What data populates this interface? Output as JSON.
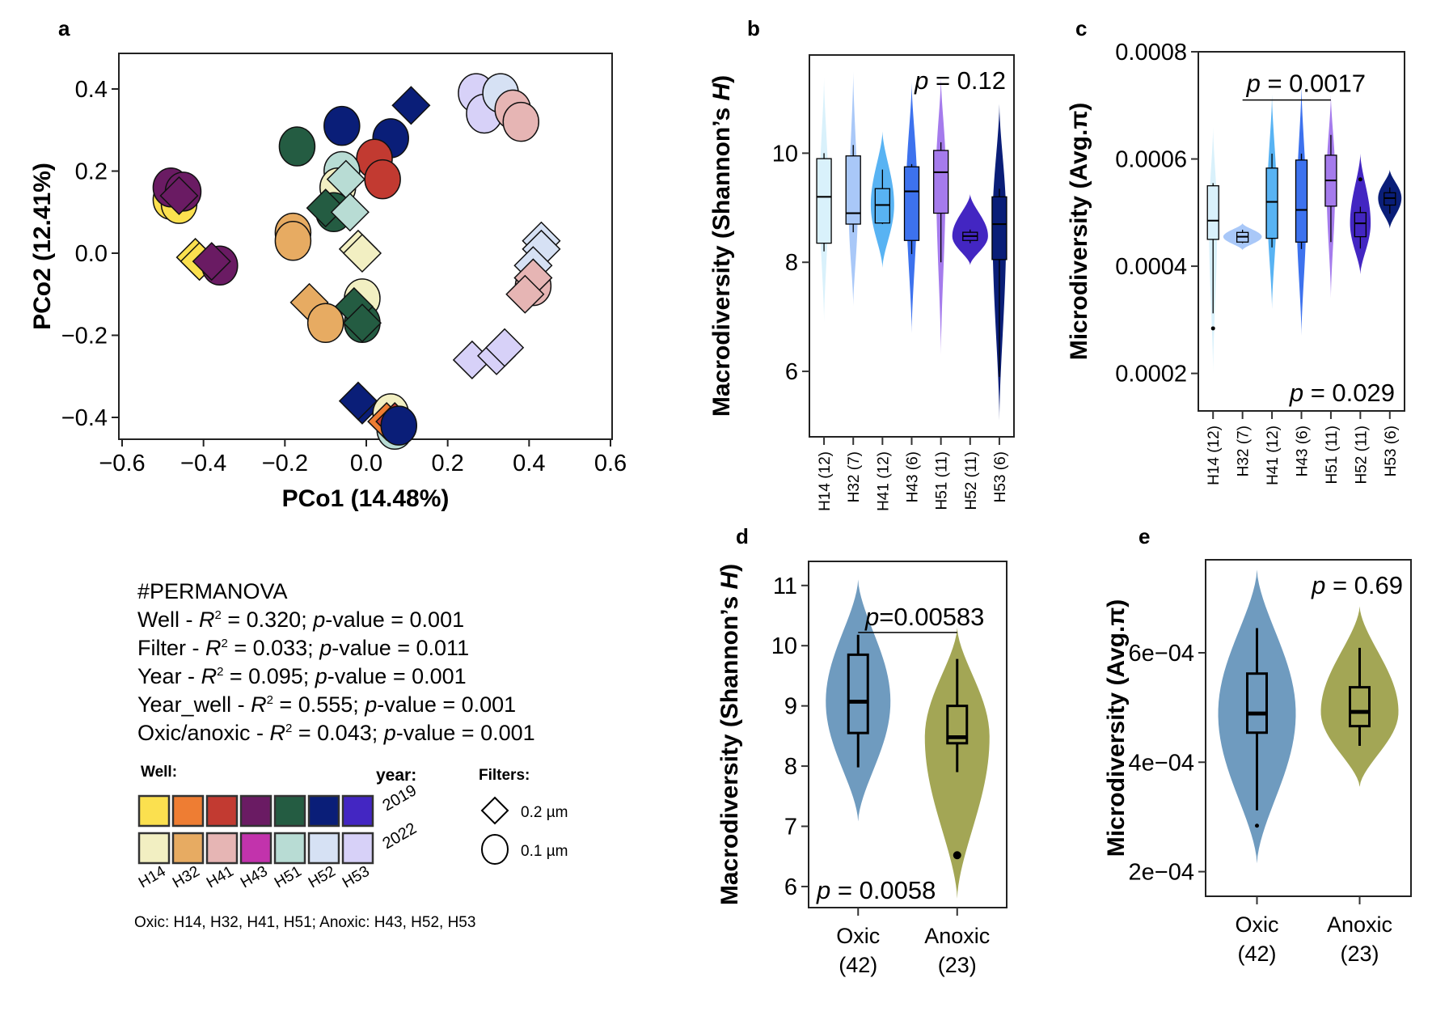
{
  "panels": {
    "a": "a",
    "b": "b",
    "c": "c",
    "d": "d",
    "e": "e"
  },
  "permanova": {
    "title": "#PERMANOVA",
    "rows": [
      {
        "factor": "Well",
        "r2": "0.320",
        "p": "0.001"
      },
      {
        "factor": "Filter",
        "r2": "0.033",
        "p": "0.011"
      },
      {
        "factor": "Year",
        "r2": "0.095",
        "p": "0.001"
      },
      {
        "factor": "Year_well",
        "r2": "0.555",
        "p": "0.001"
      },
      {
        "factor": "Oxic/anoxic",
        "r2": "0.043",
        "p": "0.001"
      }
    ],
    "r_label": "R",
    "sup": "2",
    "p_label": "p",
    "pvalue_suffix": "-value = "
  },
  "legend": {
    "well_title": "Well:",
    "year_title": "year:",
    "filters_title": "Filters:",
    "years": [
      "2019",
      "2022"
    ],
    "wells": [
      "H14",
      "H32",
      "H41",
      "H43",
      "H51",
      "H52",
      "H53"
    ],
    "colors_2019": [
      "#fbe04f",
      "#ee7d33",
      "#c23a31",
      "#6a1b63",
      "#245c42",
      "#0a1e78",
      "#4326c2"
    ],
    "colors_2022": [
      "#f2efc2",
      "#e7ab62",
      "#e6b5b4",
      "#c233ac",
      "#b8dcd4",
      "#d6e1f4",
      "#d7d1f8"
    ],
    "filters": [
      {
        "shape": "diamond",
        "label": "0.2 µm"
      },
      {
        "shape": "circle",
        "label": "0.1 µm"
      }
    ],
    "oxic_note": "Oxic: H14, H32, H41, H51; Anoxic: H43, H52, H53"
  },
  "chart_data": [
    {
      "id": "a",
      "type": "scatter",
      "title": "",
      "xlabel": "PCo1 (14.48%)",
      "ylabel": "PCo2 (12.41%)",
      "xlim": [
        -0.6,
        0.6
      ],
      "ylim": [
        -0.46,
        0.48
      ],
      "xticks": [
        -0.6,
        -0.4,
        -0.2,
        0.0,
        0.2,
        0.4,
        0.6
      ],
      "xtick_labels": [
        "−0.6",
        "−0.4",
        "−0.2",
        "0.0",
        "0.2",
        "0.4",
        "0.6"
      ],
      "yticks": [
        -0.4,
        -0.2,
        0.0,
        0.2,
        0.4
      ],
      "ytick_labels": [
        "−0.4",
        "−0.2",
        "0.0",
        "0.2",
        "0.4"
      ],
      "points": [
        {
          "x": -0.48,
          "y": 0.13,
          "well": "H14",
          "year": "2019",
          "filter": "0.1"
        },
        {
          "x": -0.46,
          "y": 0.12,
          "well": "H14",
          "year": "2019",
          "filter": "0.1"
        },
        {
          "x": -0.48,
          "y": 0.16,
          "well": "H43",
          "year": "2019",
          "filter": "0.1"
        },
        {
          "x": -0.45,
          "y": 0.15,
          "well": "H43",
          "year": "2019",
          "filter": "0.1"
        },
        {
          "x": -0.46,
          "y": 0.14,
          "well": "H43",
          "year": "2019",
          "filter": "0.2"
        },
        {
          "x": -0.42,
          "y": -0.01,
          "well": "H14",
          "year": "2019",
          "filter": "0.2"
        },
        {
          "x": -0.41,
          "y": -0.02,
          "well": "H14",
          "year": "2019",
          "filter": "0.2"
        },
        {
          "x": -0.36,
          "y": -0.03,
          "well": "H43",
          "year": "2019",
          "filter": "0.1"
        },
        {
          "x": -0.38,
          "y": -0.02,
          "well": "H43",
          "year": "2019",
          "filter": "0.2"
        },
        {
          "x": -0.17,
          "y": 0.26,
          "well": "H51",
          "year": "2019",
          "filter": "0.1"
        },
        {
          "x": -0.06,
          "y": 0.31,
          "well": "H52",
          "year": "2019",
          "filter": "0.1"
        },
        {
          "x": 0.06,
          "y": 0.28,
          "well": "H52",
          "year": "2019",
          "filter": "0.1"
        },
        {
          "x": 0.11,
          "y": 0.36,
          "well": "H52",
          "year": "2019",
          "filter": "0.2"
        },
        {
          "x": 0.02,
          "y": 0.23,
          "well": "H41",
          "year": "2019",
          "filter": "0.1"
        },
        {
          "x": 0.04,
          "y": 0.18,
          "well": "H41",
          "year": "2019",
          "filter": "0.1"
        },
        {
          "x": -0.06,
          "y": 0.2,
          "well": "H51",
          "year": "2022",
          "filter": "0.1"
        },
        {
          "x": -0.07,
          "y": 0.16,
          "well": "H14",
          "year": "2022",
          "filter": "0.1"
        },
        {
          "x": -0.05,
          "y": 0.18,
          "well": "H51",
          "year": "2022",
          "filter": "0.2"
        },
        {
          "x": -0.08,
          "y": 0.1,
          "well": "H51",
          "year": "2019",
          "filter": "0.1"
        },
        {
          "x": -0.1,
          "y": 0.11,
          "well": "H51",
          "year": "2019",
          "filter": "0.2"
        },
        {
          "x": -0.04,
          "y": 0.1,
          "well": "H51",
          "year": "2022",
          "filter": "0.2"
        },
        {
          "x": -0.18,
          "y": 0.05,
          "well": "H32",
          "year": "2022",
          "filter": "0.1"
        },
        {
          "x": -0.18,
          "y": 0.03,
          "well": "H32",
          "year": "2022",
          "filter": "0.1"
        },
        {
          "x": -0.02,
          "y": 0.01,
          "well": "H14",
          "year": "2022",
          "filter": "0.2"
        },
        {
          "x": -0.01,
          "y": 0.0,
          "well": "H14",
          "year": "2022",
          "filter": "0.2"
        },
        {
          "x": -0.01,
          "y": -0.11,
          "well": "H14",
          "year": "2022",
          "filter": "0.1"
        },
        {
          "x": -0.14,
          "y": -0.12,
          "well": "H32",
          "year": "2022",
          "filter": "0.2"
        },
        {
          "x": -0.1,
          "y": -0.17,
          "well": "H32",
          "year": "2022",
          "filter": "0.1"
        },
        {
          "x": -0.01,
          "y": -0.17,
          "well": "H51",
          "year": "2019",
          "filter": "0.1"
        },
        {
          "x": -0.03,
          "y": -0.13,
          "well": "H51",
          "year": "2019",
          "filter": "0.2"
        },
        {
          "x": -0.01,
          "y": -0.17,
          "well": "H51",
          "year": "2019",
          "filter": "0.2"
        },
        {
          "x": 0.27,
          "y": 0.39,
          "well": "H53",
          "year": "2022",
          "filter": "0.1"
        },
        {
          "x": 0.29,
          "y": 0.34,
          "well": "H53",
          "year": "2022",
          "filter": "0.1"
        },
        {
          "x": 0.33,
          "y": 0.39,
          "well": "H52",
          "year": "2022",
          "filter": "0.1"
        },
        {
          "x": 0.36,
          "y": 0.35,
          "well": "H41",
          "year": "2022",
          "filter": "0.1"
        },
        {
          "x": 0.38,
          "y": 0.32,
          "well": "H41",
          "year": "2022",
          "filter": "0.1"
        },
        {
          "x": 0.43,
          "y": 0.03,
          "well": "H52",
          "year": "2022",
          "filter": "0.2"
        },
        {
          "x": 0.43,
          "y": 0.01,
          "well": "H52",
          "year": "2022",
          "filter": "0.2"
        },
        {
          "x": 0.41,
          "y": -0.03,
          "well": "H52",
          "year": "2022",
          "filter": "0.2"
        },
        {
          "x": 0.41,
          "y": -0.08,
          "well": "H41",
          "year": "2022",
          "filter": "0.1"
        },
        {
          "x": 0.41,
          "y": -0.06,
          "well": "H41",
          "year": "2022",
          "filter": "0.2"
        },
        {
          "x": 0.39,
          "y": -0.1,
          "well": "H41",
          "year": "2022",
          "filter": "0.2"
        },
        {
          "x": 0.26,
          "y": -0.26,
          "well": "H53",
          "year": "2022",
          "filter": "0.2"
        },
        {
          "x": 0.32,
          "y": -0.25,
          "well": "H53",
          "year": "2022",
          "filter": "0.2"
        },
        {
          "x": 0.34,
          "y": -0.23,
          "well": "H53",
          "year": "2022",
          "filter": "0.2"
        },
        {
          "x": -0.01,
          "y": -0.37,
          "well": "H52",
          "year": "2019",
          "filter": "0.2"
        },
        {
          "x": -0.02,
          "y": -0.36,
          "well": "H52",
          "year": "2019",
          "filter": "0.2"
        },
        {
          "x": 0.06,
          "y": -0.39,
          "well": "H14",
          "year": "2022",
          "filter": "0.1"
        },
        {
          "x": 0.07,
          "y": -0.43,
          "well": "H51",
          "year": "2022",
          "filter": "0.1"
        },
        {
          "x": 0.05,
          "y": -0.41,
          "well": "H32",
          "year": "2019",
          "filter": "0.2"
        },
        {
          "x": 0.07,
          "y": -0.41,
          "well": "H41",
          "year": "2019",
          "filter": "0.2"
        },
        {
          "x": 0.08,
          "y": -0.42,
          "well": "H52",
          "year": "2019",
          "filter": "0.1"
        }
      ]
    },
    {
      "id": "b",
      "type": "violin",
      "ylabel": "Macrodiversity (Shannon’s H)",
      "ylim": [
        4.8,
        11.8
      ],
      "yticks": [
        6,
        8,
        10
      ],
      "ytick_labels": [
        "6",
        "8",
        "10"
      ],
      "annotation": "p = 0.12",
      "categories": [
        "H14 (12)",
        "H32 (7)",
        "H41 (12)",
        "H43 (6)",
        "H51 (11)",
        "H52 (11)",
        "H53 (6)"
      ],
      "colors": [
        "#d9f1fb",
        "#a9c8f8",
        "#58b3f3",
        "#3d72ee",
        "#a57bec",
        "#4326c2",
        "#0a1e78"
      ],
      "groups": [
        {
          "min": 8.2,
          "q1": 8.35,
          "median": 9.2,
          "q3": 9.9,
          "max": 10.0,
          "vmin": 6.9,
          "vmax": 11.4,
          "width": 0.32
        },
        {
          "min": 8.55,
          "q1": 8.7,
          "median": 8.9,
          "q3": 9.95,
          "max": 10.15,
          "vmin": 7.2,
          "vmax": 11.5,
          "width": 0.32
        },
        {
          "min": 8.7,
          "q1": 8.72,
          "median": 9.05,
          "q3": 9.35,
          "max": 9.7,
          "vmin": 7.9,
          "vmax": 10.4,
          "width": 0.85
        },
        {
          "min": 8.15,
          "q1": 8.4,
          "median": 9.3,
          "q3": 9.75,
          "max": 9.8,
          "vmin": 6.7,
          "vmax": 11.3,
          "width": 0.4
        },
        {
          "min": 8.0,
          "q1": 8.9,
          "median": 9.65,
          "q3": 10.05,
          "max": 10.2,
          "vmin": 6.3,
          "vmax": 11.4,
          "width": 0.35
        },
        {
          "min": 8.35,
          "q1": 8.4,
          "median": 8.48,
          "q3": 8.55,
          "max": 8.6,
          "vmin": 7.95,
          "vmax": 9.25,
          "width": 1.3
        },
        {
          "min": 5.9,
          "q1": 8.05,
          "median": 8.7,
          "q3": 9.2,
          "max": 9.35,
          "vmin": 5.1,
          "vmax": 10.9,
          "width": 0.5
        }
      ]
    },
    {
      "id": "c",
      "type": "violin",
      "ylabel": "Microdiversity (Avg.π)",
      "ylim": [
        0.00013,
        0.0008
      ],
      "yticks": [
        0.0002,
        0.0004,
        0.0006,
        0.0008
      ],
      "ytick_labels": [
        "0.0002",
        "0.0004",
        "0.0006",
        "0.0008"
      ],
      "annotation": "p = 0.029",
      "bracket_annotation": "p = 0.0017",
      "bracket_groups": [
        "H32 (7)",
        "H51 (11)"
      ],
      "categories": [
        "H14 (12)",
        "H32 (7)",
        "H41 (12)",
        "H43 (6)",
        "H51 (11)",
        "H52 (11)",
        "H53 (6)"
      ],
      "colors": [
        "#d9f1fb",
        "#a9c8f8",
        "#58b3f3",
        "#3d72ee",
        "#a57bec",
        "#4326c2",
        "#0a1e78"
      ],
      "groups": [
        {
          "min": 0.000312,
          "q1": 0.00045,
          "median": 0.000485,
          "q3": 0.00055,
          "max": 0.000555,
          "vmin": 0.0002,
          "vmax": 0.00066,
          "width": 0.3,
          "outliers": [
            0.000284
          ]
        },
        {
          "min": 0.000443,
          "q1": 0.000445,
          "median": 0.000455,
          "q3": 0.000463,
          "max": 0.000468,
          "vmin": 0.00043,
          "vmax": 0.00048,
          "width": 1.4
        },
        {
          "min": 0.000435,
          "q1": 0.000452,
          "median": 0.00052,
          "q3": 0.000583,
          "max": 0.00061,
          "vmin": 0.00032,
          "vmax": 0.00072,
          "width": 0.35
        },
        {
          "min": 0.000432,
          "q1": 0.000445,
          "median": 0.000505,
          "q3": 0.000598,
          "max": 0.00061,
          "vmin": 0.00027,
          "vmax": 0.00074,
          "width": 0.35
        },
        {
          "min": 0.000445,
          "q1": 0.000512,
          "median": 0.00056,
          "q3": 0.000607,
          "max": 0.000645,
          "vmin": 0.00034,
          "vmax": 0.00072,
          "width": 0.32
        },
        {
          "min": 0.000433,
          "q1": 0.000455,
          "median": 0.00048,
          "q3": 0.0005,
          "max": 0.000511,
          "vmin": 0.000385,
          "vmax": 0.00061,
          "width": 0.75,
          "outliers": [
            0.000562
          ]
        },
        {
          "min": 0.000498,
          "q1": 0.000514,
          "median": 0.000527,
          "q3": 0.000537,
          "max": 0.000547,
          "vmin": 0.00047,
          "vmax": 0.00058,
          "width": 0.85
        }
      ]
    },
    {
      "id": "d",
      "type": "violin",
      "ylabel": "Macrodiversity (Shannon’s H)",
      "ylim": [
        5.65,
        11.4
      ],
      "yticks": [
        6,
        7,
        8,
        9,
        10,
        11
      ],
      "ytick_labels": [
        "6",
        "7",
        "8",
        "9",
        "10",
        "11"
      ],
      "annotation": "p = 0.0058",
      "bracket_annotation": "p=0.00583",
      "categories": [
        "Oxic",
        "Anoxic"
      ],
      "category_counts": [
        "(42)",
        "(23)"
      ],
      "colors": [
        "#6f9bbf",
        "#a3a655"
      ],
      "groups": [
        {
          "min": 7.98,
          "q1": 8.55,
          "median": 9.07,
          "q3": 9.85,
          "max": 10.18,
          "vmin": 7.08,
          "vmax": 11.1
        },
        {
          "min": 7.9,
          "q1": 8.38,
          "median": 8.48,
          "q3": 9.0,
          "max": 9.78,
          "vmin": 5.8,
          "vmax": 10.3,
          "outliers": [
            6.52
          ]
        }
      ]
    },
    {
      "id": "e",
      "type": "violin",
      "ylabel": "Microdiversity (Avg.π)",
      "ylim": [
        0.000155,
        0.00077
      ],
      "yticks": [
        0.0002,
        0.0004,
        0.0006
      ],
      "ytick_labels": [
        "2e−04",
        "4e−04",
        "6e−04"
      ],
      "annotation": "p = 0.69",
      "categories": [
        "Oxic",
        "Anoxic"
      ],
      "category_counts": [
        "(42)",
        "(23)"
      ],
      "colors": [
        "#6f9bbf",
        "#a3a655"
      ],
      "groups": [
        {
          "min": 0.000312,
          "q1": 0.000454,
          "median": 0.000489,
          "q3": 0.000562,
          "max": 0.000645,
          "vmin": 0.000215,
          "vmax": 0.000752,
          "outliers": [
            0.000284
          ]
        },
        {
          "min": 0.00043,
          "q1": 0.000466,
          "median": 0.000492,
          "q3": 0.000537,
          "max": 0.000609,
          "vmin": 0.000355,
          "vmax": 0.000685
        }
      ]
    }
  ]
}
